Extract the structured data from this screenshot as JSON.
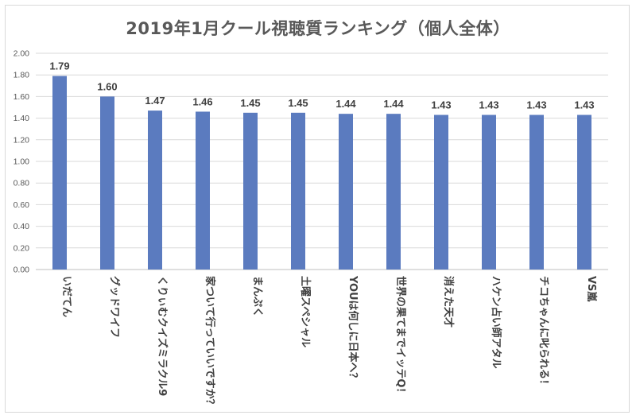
{
  "chart_data": {
    "type": "bar",
    "title": "2019年1月クール視聴質ランキング（個人全体）",
    "xlabel": "",
    "ylabel": "",
    "ylim": [
      0,
      2.0
    ],
    "yticks": [
      "0.00",
      "0.20",
      "0.40",
      "0.60",
      "0.80",
      "1.00",
      "1.20",
      "1.40",
      "1.60",
      "1.80",
      "2.00"
    ],
    "grid": true,
    "bar_color": "#5b7bbf",
    "categories": [
      "いだてん",
      "グッドワイフ",
      "くりぃむクイズミラクル9",
      "家ついて行っていいですか？",
      "まんぷく",
      "土曜スペシャル",
      "YOUは何しに日本へ？",
      "世界の果てまでイッテQ！",
      "消えた天才",
      "ハケン占い師アタル",
      "チコちゃんに叱られる！",
      "VS嵐"
    ],
    "values": [
      1.79,
      1.6,
      1.47,
      1.46,
      1.45,
      1.45,
      1.44,
      1.44,
      1.43,
      1.43,
      1.43,
      1.43
    ],
    "value_labels": [
      "1.79",
      "1.60",
      "1.47",
      "1.46",
      "1.45",
      "1.45",
      "1.44",
      "1.44",
      "1.43",
      "1.43",
      "1.43",
      "1.43"
    ]
  }
}
